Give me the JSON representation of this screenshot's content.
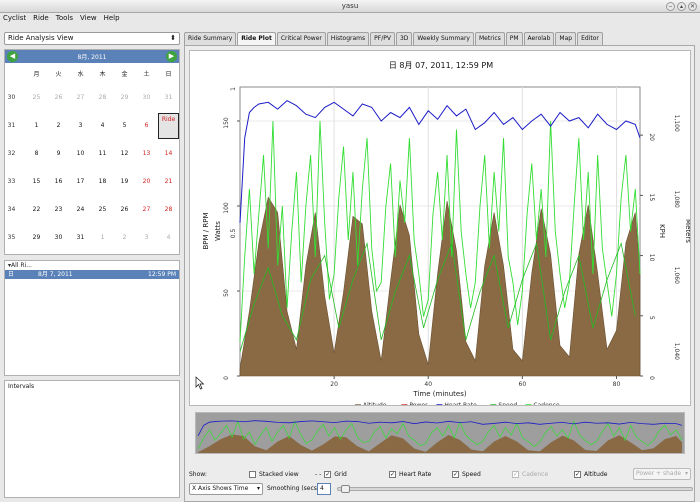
{
  "window": {
    "title": "yasu"
  },
  "menu": [
    "Cyclist",
    "Ride",
    "Tools",
    "View",
    "Help"
  ],
  "sidebar": {
    "view_select": "Ride Analysis View",
    "calendar": {
      "month_label": "8月, 2011",
      "weekday_headers": [
        "月",
        "火",
        "水",
        "木",
        "金",
        "土",
        "日"
      ],
      "weeks": [
        {
          "num": "30",
          "days": [
            "25",
            "26",
            "27",
            "28",
            "29",
            "30",
            "31"
          ],
          "gray": true
        },
        {
          "num": "31",
          "days": [
            "1",
            "2",
            "3",
            "4",
            "5",
            "6",
            "Ride"
          ],
          "gray": false
        },
        {
          "num": "32",
          "days": [
            "8",
            "9",
            "10",
            "11",
            "12",
            "13",
            "14"
          ],
          "gray": false
        },
        {
          "num": "33",
          "days": [
            "15",
            "16",
            "17",
            "18",
            "19",
            "20",
            "21"
          ],
          "gray": false
        },
        {
          "num": "34",
          "days": [
            "22",
            "23",
            "24",
            "25",
            "26",
            "27",
            "28"
          ],
          "gray": false
        },
        {
          "num": "35",
          "days": [
            "29",
            "30",
            "31",
            "1",
            "2",
            "3",
            "4"
          ],
          "gray": false
        }
      ]
    },
    "rides": {
      "header": "▾All Ri...",
      "day": "日",
      "date": "8月 7, 2011",
      "time": "12:59 PM"
    },
    "intervals_label": "Intervals"
  },
  "tabs": [
    {
      "label": "Ride Summary",
      "active": false
    },
    {
      "label": "Ride Plot",
      "active": true
    },
    {
      "label": "Critical Power",
      "active": false
    },
    {
      "label": "Histograms",
      "active": false
    },
    {
      "label": "PF/PV",
      "active": false
    },
    {
      "label": "3D",
      "active": false
    },
    {
      "label": "Weekly Summary",
      "active": false
    },
    {
      "label": "Metrics",
      "active": false
    },
    {
      "label": "PM",
      "active": false
    },
    {
      "label": "Aerolab",
      "active": false
    },
    {
      "label": "Map",
      "active": false
    },
    {
      "label": "Editor",
      "active": false
    }
  ],
  "plot": {
    "title": "日 8月 07, 2011, 12:59 PM",
    "xlabel": "Time (minutes)",
    "ylabel_left": "BPM / RPM",
    "ylabel_left2": "Watts",
    "ylabel_right": "KPH",
    "ylabel_right2": "Meters",
    "left_ticks": [
      {
        "v": 0,
        "label": "0"
      },
      {
        "v": 50,
        "label": "50"
      },
      {
        "v": 100,
        "label": "100"
      },
      {
        "v": 150,
        "label": "150"
      }
    ],
    "watts_ticks": [
      {
        "v": 0.5,
        "label": "0.5"
      },
      {
        "v": 1,
        "label": "1"
      }
    ],
    "right_ticks": [
      {
        "v": 0,
        "label": "0"
      },
      {
        "v": 5,
        "label": "5"
      },
      {
        "v": 10,
        "label": "10"
      },
      {
        "v": 15,
        "label": "15"
      },
      {
        "v": 20,
        "label": "20"
      }
    ],
    "meters_ticks": [
      {
        "v": 1040,
        "label": "1,040"
      },
      {
        "v": 1060,
        "label": "1,060"
      },
      {
        "v": 1080,
        "label": "1,080"
      },
      {
        "v": 1100,
        "label": "1,100"
      }
    ],
    "x_ticks": [
      {
        "v": 20,
        "label": "20"
      },
      {
        "v": 40,
        "label": "40"
      },
      {
        "v": 60,
        "label": "60"
      },
      {
        "v": 80,
        "label": "80"
      }
    ],
    "legend": [
      {
        "label": "Altitude",
        "color": "#8a6a45"
      },
      {
        "label": "Power",
        "color": "#d83030"
      },
      {
        "label": "Heart Rate",
        "color": "#1c1cc8"
      },
      {
        "label": "Speed",
        "color": "#22bb22"
      },
      {
        "label": "Cadence",
        "color": "#33dd33"
      }
    ]
  },
  "chart_data": {
    "type": "line",
    "title": "日 8月 07, 2011, 12:59 PM",
    "xlabel": "Time (minutes)",
    "ylabel": "BPM / RPM",
    "xlim": [
      0,
      85
    ],
    "ylim_left": [
      0,
      170
    ],
    "ylim_right_kph": [
      0,
      24
    ],
    "ylim_right_meters": [
      1033,
      1109
    ],
    "series": [
      {
        "name": "Heart Rate",
        "color": "#1c1cc8",
        "x": [
          0,
          1,
          2,
          3,
          4,
          6,
          8,
          10,
          12,
          14,
          16,
          18,
          20,
          22,
          24,
          26,
          28,
          30,
          32,
          34,
          36,
          38,
          40,
          42,
          44,
          46,
          48,
          50,
          52,
          54,
          56,
          58,
          60,
          62,
          64,
          66,
          68,
          70,
          72,
          74,
          76,
          78,
          80,
          82,
          84,
          85
        ],
        "y": [
          90,
          140,
          155,
          158,
          160,
          161,
          157,
          162,
          159,
          154,
          152,
          158,
          161,
          157,
          153,
          160,
          158,
          150,
          155,
          152,
          158,
          148,
          156,
          151,
          159,
          153,
          157,
          145,
          149,
          155,
          148,
          152,
          145,
          150,
          154,
          147,
          155,
          150,
          152,
          146,
          154,
          148,
          145,
          150,
          148,
          140
        ]
      },
      {
        "name": "Altitude",
        "color": "#8a6a45",
        "x": [
          0,
          2,
          4,
          6,
          8,
          10,
          12,
          14,
          16,
          18,
          20,
          22,
          24,
          26,
          28,
          30,
          32,
          34,
          36,
          38,
          40,
          42,
          44,
          46,
          48,
          50,
          52,
          54,
          56,
          58,
          60,
          62,
          64,
          66,
          68,
          70,
          72,
          74,
          76,
          78,
          80,
          82,
          84,
          85
        ],
        "y": [
          1035,
          1050,
          1068,
          1080,
          1076,
          1050,
          1040,
          1062,
          1076,
          1054,
          1039,
          1055,
          1075,
          1073,
          1050,
          1037,
          1058,
          1078,
          1070,
          1044,
          1036,
          1060,
          1079,
          1066,
          1042,
          1037,
          1062,
          1076,
          1062,
          1040,
          1037,
          1060,
          1077,
          1065,
          1041,
          1038,
          1065,
          1078,
          1060,
          1040,
          1045,
          1068,
          1076,
          1060
        ]
      },
      {
        "name": "Cadence",
        "color": "#33dd33",
        "x": [
          0,
          1,
          2,
          3,
          4,
          5,
          6,
          7,
          8,
          9,
          10,
          11,
          12,
          13,
          14,
          15,
          16,
          17,
          18,
          19,
          20,
          21,
          22,
          23,
          24,
          25,
          26,
          27,
          28,
          29,
          30,
          31,
          32,
          33,
          34,
          35,
          36,
          37,
          38,
          39,
          40,
          41,
          42,
          43,
          44,
          45,
          46,
          47,
          48,
          49,
          50,
          51,
          52,
          53,
          54,
          55,
          56,
          57,
          58,
          59,
          60,
          61,
          62,
          63,
          64,
          65,
          66,
          67,
          68,
          69,
          70,
          71,
          72,
          73,
          74,
          75,
          76,
          77,
          78,
          79,
          80,
          81,
          82,
          83,
          84,
          85
        ],
        "y": [
          20,
          70,
          110,
          60,
          95,
          130,
          75,
          150,
          65,
          100,
          40,
          85,
          120,
          55,
          100,
          130,
          70,
          150,
          90,
          45,
          60,
          105,
          135,
          80,
          120,
          65,
          110,
          140,
          75,
          50,
          55,
          100,
          125,
          70,
          115,
          90,
          140,
          80,
          60,
          35,
          45,
          95,
          120,
          80,
          130,
          70,
          145,
          85,
          60,
          40,
          55,
          100,
          130,
          75,
          120,
          85,
          140,
          70,
          55,
          30,
          50,
          95,
          125,
          80,
          110,
          70,
          150,
          85,
          60,
          40,
          55,
          100,
          140,
          80,
          120,
          60,
          130,
          75,
          55,
          35,
          60,
          105,
          130,
          85,
          110,
          60
        ]
      },
      {
        "name": "Speed",
        "color": "#22bb22",
        "x": [
          0,
          3,
          6,
          9,
          12,
          15,
          18,
          21,
          24,
          27,
          30,
          33,
          36,
          39,
          42,
          45,
          48,
          51,
          54,
          57,
          60,
          63,
          66,
          69,
          72,
          75,
          78,
          81,
          84
        ],
        "y": [
          2,
          6,
          9,
          5,
          3,
          8,
          10,
          4,
          8,
          11,
          3,
          7,
          10,
          4,
          8,
          11,
          3,
          7,
          10,
          4,
          8,
          11,
          3,
          7,
          10,
          4,
          8,
          11,
          5
        ]
      }
    ],
    "legend": [
      "Altitude",
      "Power",
      "Heart Rate",
      "Speed",
      "Cadence"
    ]
  },
  "controls": {
    "show_label": "Show:",
    "stacked_view": "Stacked view",
    "grid_prefix": "- -",
    "grid": "Grid",
    "heart_rate": "Heart Rate",
    "speed": "Speed",
    "cadence": "Cadence",
    "altitude": "Altitude",
    "shade_select": "Power + shade",
    "xaxis_select": "X Axis Shows Time",
    "smoothing_label": "Smoothing (secs)",
    "smoothing_value": "4",
    "checked_mark": "✓",
    "combo_arrow": "▾",
    "smoothing_slider_fraction": 0.01
  }
}
